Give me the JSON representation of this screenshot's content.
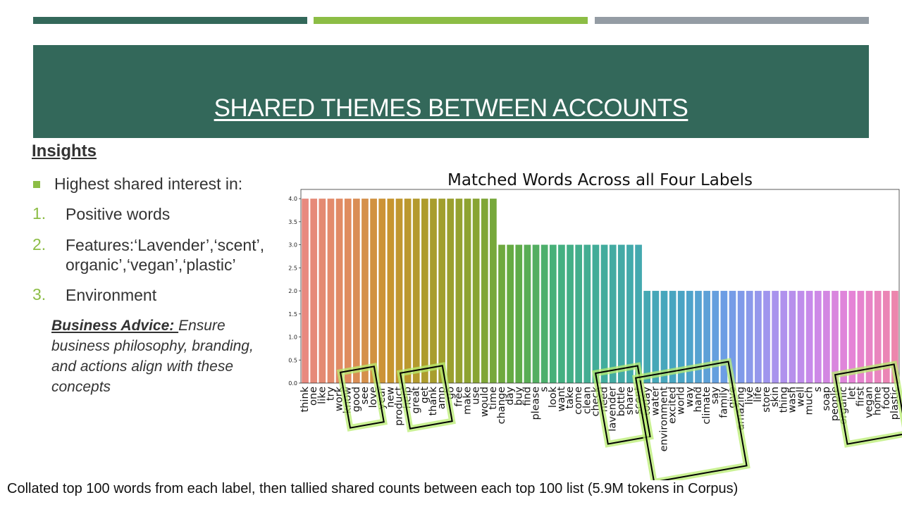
{
  "slide": {
    "title": "SHARED THEMES BETWEEN ACCOUNTS",
    "accent_colors": {
      "dark_green": "#33685a",
      "light_green": "#8cbd45",
      "gray": "#949ca4"
    }
  },
  "insights": {
    "heading": "Insights",
    "bullet": "Highest shared interest in:",
    "items": [
      {
        "num": "1.",
        "text": "Positive words"
      },
      {
        "num": "2.",
        "line1": "Features:‘Lavender’,‘scent’,",
        "line2": "organic’,‘vegan’,‘plastic’"
      },
      {
        "num": "3.",
        "text": "Environment"
      }
    ],
    "advice_label": "Business Advice: ",
    "advice_text": " Ensure business philosophy, branding, and actions align with these concepts"
  },
  "footer": "Collated top 100 words from each label, then tallied shared counts between each top 100 list (5.9M tokens in Corpus)",
  "chart_data": {
    "type": "bar",
    "title": "Matched Words Across all Four Labels",
    "xlabel": "",
    "ylabel": "",
    "ylim": [
      0,
      4.2
    ],
    "yticks": [
      "0.0",
      "0.5",
      "1.0",
      "1.5",
      "2.0",
      "2.5",
      "3.0",
      "3.5",
      "4.0"
    ],
    "categories": [
      "think",
      "one",
      "like",
      "try",
      "work",
      "know",
      "good",
      "see",
      "love",
      "year",
      "new",
      "product",
      "help",
      "great",
      "get",
      "thank",
      "amp",
      "go",
      "free",
      "make",
      "use",
      "would",
      "time",
      "change",
      "day",
      "buy",
      "find",
      "please",
      "s",
      "look",
      "want",
      "take",
      "come",
      "clean",
      "check",
      "need",
      "lavender",
      "bottle",
      "share",
      "scent",
      "today",
      "water",
      "environment",
      "excited",
      "world",
      "way",
      "hand",
      "climate",
      "say",
      "family",
      "give",
      "amazing",
      "live",
      "life",
      "store",
      "skin",
      "thing",
      "wash",
      "well",
      "much",
      "s",
      "soap",
      "people",
      "organic",
      "let",
      "first",
      "vegan",
      "home",
      "food",
      "plastic"
    ],
    "values": [
      4,
      4,
      4,
      4,
      4,
      4,
      4,
      4,
      4,
      4,
      4,
      4,
      4,
      4,
      4,
      4,
      4,
      4,
      4,
      4,
      4,
      4,
      4,
      3,
      3,
      3,
      3,
      3,
      3,
      3,
      3,
      3,
      3,
      3,
      3,
      3,
      3,
      3,
      3,
      3,
      2,
      2,
      2,
      2,
      2,
      2,
      2,
      2,
      2,
      2,
      2,
      2,
      2,
      2,
      2,
      2,
      2,
      2,
      2,
      2,
      2,
      2,
      2,
      2,
      2,
      2,
      2,
      2,
      2,
      2
    ],
    "highlight_groups": [
      {
        "name": "positive-words",
        "words": [
          "know",
          "good",
          "see",
          "love"
        ]
      },
      {
        "name": "positive-words-2",
        "words": [
          "help",
          "great",
          "get",
          "thank",
          "amp"
        ]
      },
      {
        "name": "features",
        "words": [
          "need",
          "lavender",
          "bottle",
          "share",
          "scent"
        ]
      },
      {
        "name": "environment",
        "words": [
          "water",
          "environment",
          "excited",
          "world",
          "way",
          "hand",
          "climate",
          "say",
          "family",
          "give",
          "amazing"
        ]
      },
      {
        "name": "features-2",
        "words": [
          "organic",
          "let",
          "first",
          "vegan",
          "home",
          "food",
          "plastic"
        ]
      }
    ],
    "highlight_colors": {
      "glow": "#b8ec70",
      "border": "#000000"
    }
  }
}
